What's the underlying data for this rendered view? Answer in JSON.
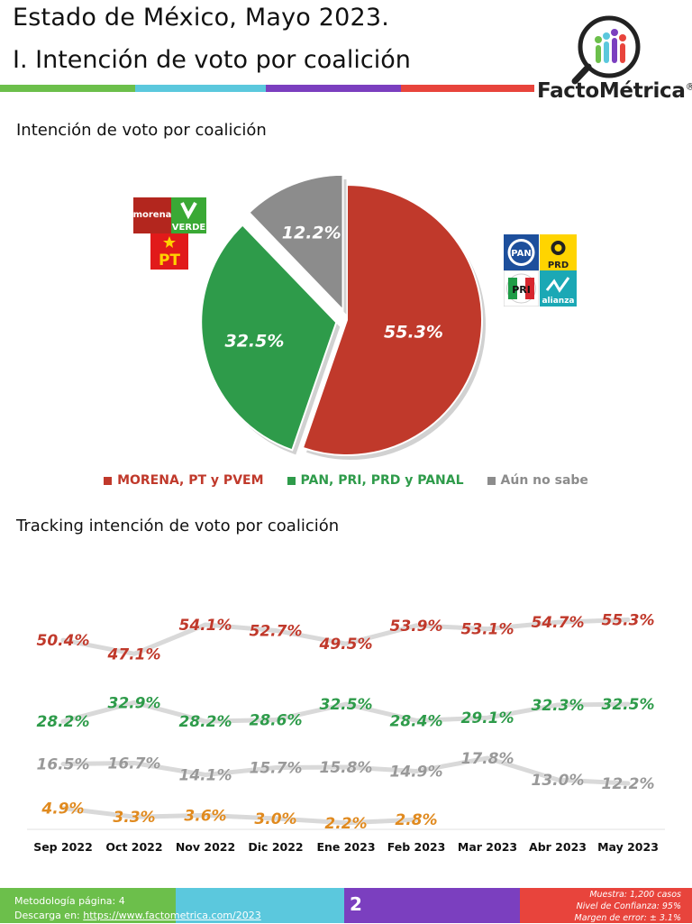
{
  "header": {
    "title_line1": "Estado de México, Mayo 2023.",
    "title_line2": "I. Intención de voto por coalición",
    "brand": "FactoMétrica",
    "brand_mark": "®",
    "stripe_colors": [
      "#6cbf4b",
      "#5bc8dd",
      "#7b3fbf",
      "#e8443c"
    ]
  },
  "colors": {
    "morena": "#c0392b",
    "pan": "#2e9b4a",
    "nosabe": "#8c8c8c",
    "nosabe_track": "#999999",
    "other_track": "#e08a1f"
  },
  "pie_section": {
    "heading": "Intención de voto por coalición",
    "left_logos": [
      "morena",
      "VERDE",
      "PT"
    ],
    "right_logos": [
      "PAN",
      "PRD",
      "PRI",
      "alianza"
    ]
  },
  "tracking_section": {
    "heading": "Tracking intención de voto por coalición"
  },
  "chart_data": [
    {
      "type": "pie",
      "title": "Intención de voto por coalición",
      "slices": [
        {
          "label": "MORENA, PT y PVEM",
          "value": 55.3,
          "display": "55.3%",
          "color": "#c0392b"
        },
        {
          "label": "PAN, PRI, PRD y PANAL",
          "value": 32.5,
          "display": "32.5%",
          "color": "#2e9b4a"
        },
        {
          "label": "Aún no sabe",
          "value": 12.2,
          "display": "12.2%",
          "color": "#8c8c8c"
        }
      ],
      "legend_placement": "bottom"
    },
    {
      "type": "line",
      "title": "Tracking intención de voto por coalición",
      "categories": [
        "Sep 2022",
        "Oct 2022",
        "Nov 2022",
        "Dic 2022",
        "Ene 2023",
        "Feb 2023",
        "Mar 2023",
        "Abr 2023",
        "May 2023"
      ],
      "series": [
        {
          "values": [
            50.4,
            47.1,
            54.1,
            52.7,
            49.5,
            53.9,
            53.1,
            54.7,
            55.3
          ],
          "labels": [
            "50.4%",
            "47.1%",
            "54.1%",
            "52.7%",
            "49.5%",
            "53.9%",
            "53.1%",
            "54.7%",
            "55.3%"
          ],
          "color": "#c0392b"
        },
        {
          "values": [
            28.2,
            32.9,
            28.2,
            28.6,
            32.5,
            28.4,
            29.1,
            32.3,
            32.5
          ],
          "labels": [
            "28.2%",
            "32.9%",
            "28.2%",
            "28.6%",
            "32.5%",
            "28.4%",
            "29.1%",
            "32.3%",
            "32.5%"
          ],
          "color": "#2e9b4a"
        },
        {
          "values": [
            16.5,
            16.7,
            14.1,
            15.7,
            15.8,
            14.9,
            17.8,
            13.0,
            12.2
          ],
          "labels": [
            "16.5%",
            "16.7%",
            "14.1%",
            "15.7%",
            "15.8%",
            "14.9%",
            "17.8%",
            "13.0%",
            "12.2%"
          ],
          "color": "#999999"
        },
        {
          "values": [
            4.9,
            3.3,
            3.6,
            3.0,
            2.2,
            2.8,
            null,
            null,
            null
          ],
          "labels": [
            "4.9%",
            "3.3%",
            "3.6%",
            "3.0%",
            "2.2%",
            "2.8%",
            "",
            "",
            ""
          ],
          "color": "#e08a1f"
        }
      ],
      "grid": false
    }
  ],
  "footer": {
    "method_label": "Metodología página: 4",
    "download_label": "Descarga en: ",
    "download_link": "https://www.factometrica.com/2023",
    "page_number": "2",
    "muestra": "Muestra:  1,200 casos",
    "confianza": "Nivel de Confianza: 95%",
    "margen": "Margen de error: ± 3.1%",
    "colors": [
      "#6cbf4b",
      "#5bc8dd",
      "#7b3fbf",
      "#e8443c"
    ]
  }
}
